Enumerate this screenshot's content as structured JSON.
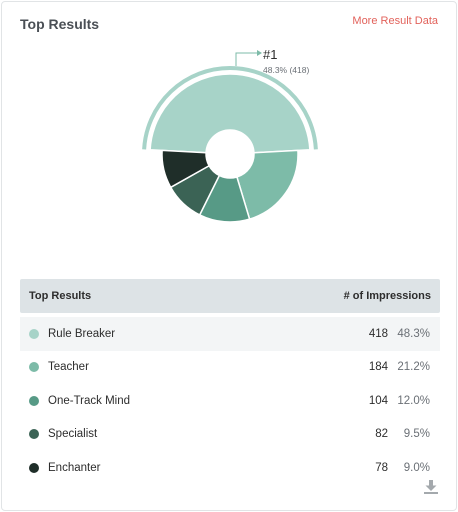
{
  "header": {
    "title": "Top Results",
    "more_link": "More Result Data"
  },
  "callout": {
    "rank": "#1",
    "detail": "48.3% (418)"
  },
  "table": {
    "col_result": "Top Results",
    "col_impressions": "# of Impressions",
    "rows": [
      {
        "label": "Rule Breaker",
        "count": "418",
        "pct": "48.3%",
        "color": "#a7d3c8"
      },
      {
        "label": "Teacher",
        "count": "184",
        "pct": "21.2%",
        "color": "#7dbba8"
      },
      {
        "label": "One-Track Mind",
        "count": "104",
        "pct": "12.0%",
        "color": "#579a86"
      },
      {
        "label": "Specialist",
        "count": "82",
        "pct": "9.5%",
        "color": "#3b6355"
      },
      {
        "label": "Enchanter",
        "count": "78",
        "pct": "9.0%",
        "color": "#1f2e29"
      }
    ]
  },
  "chart_data": {
    "type": "pie",
    "categories": [
      "Rule Breaker",
      "Teacher",
      "One-Track Mind",
      "Specialist",
      "Enchanter"
    ],
    "values": [
      48.3,
      21.2,
      12.0,
      9.5,
      9.0
    ],
    "colors": [
      "#a7d3c8",
      "#7dbba8",
      "#579a86",
      "#3b6355",
      "#1f2e29"
    ],
    "highlight_color": "#a7d3c8"
  },
  "icons": {
    "download": "download-icon"
  }
}
